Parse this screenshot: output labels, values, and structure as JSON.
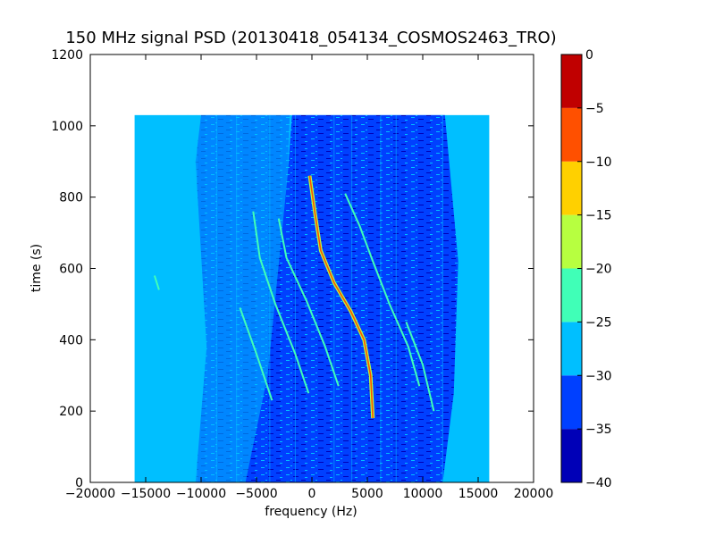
{
  "chart_data": {
    "type": "heatmap",
    "title": "150 MHz signal PSD (20130418_054134_COSMOS2463_TRO)",
    "xlabel": "frequency (Hz)",
    "ylabel": "time (s)",
    "xlim": [
      -20000,
      20000
    ],
    "ylim": [
      0,
      1200
    ],
    "xticks": [
      -20000,
      -15000,
      -10000,
      -5000,
      0,
      5000,
      10000,
      15000,
      20000
    ],
    "xtick_labels": [
      "−20000",
      "−15000",
      "−10000",
      "−5000",
      "0",
      "5000",
      "10000",
      "15000",
      "20000"
    ],
    "yticks": [
      0,
      200,
      400,
      600,
      800,
      1000,
      1200
    ],
    "ytick_labels": [
      "0",
      "200",
      "400",
      "600",
      "800",
      "1000",
      "1200"
    ],
    "data_extent": {
      "x": [
        -16000,
        16000
      ],
      "y": [
        0,
        1030
      ]
    },
    "colorbar": {
      "levels": [
        -40,
        -35,
        -30,
        -25,
        -20,
        -15,
        -10,
        -5,
        0
      ],
      "tick_labels": [
        "−40",
        "−35",
        "−30",
        "−25",
        "−20",
        "−15",
        "−10",
        "−5",
        "0"
      ],
      "colors": [
        "#0000b7",
        "#0040ff",
        "#00bfff",
        "#40ffb7",
        "#b7ff40",
        "#ffd000",
        "#ff5000",
        "#c00000"
      ]
    },
    "background_level_color": "#00bfff",
    "noise_level_color": "#0040ff",
    "dominant_trace": {
      "name": "main Doppler trace",
      "peak_color": "#ff5000",
      "points": [
        [
          5500,
          180
        ],
        [
          5300,
          300
        ],
        [
          4700,
          400
        ],
        [
          3500,
          480
        ],
        [
          2000,
          560
        ],
        [
          800,
          650
        ],
        [
          300,
          750
        ],
        [
          -200,
          860
        ]
      ]
    },
    "secondary_traces": [
      {
        "points": [
          [
            9700,
            270
          ],
          [
            8700,
            380
          ],
          [
            7000,
            500
          ],
          [
            5500,
            620
          ],
          [
            4300,
            720
          ],
          [
            3000,
            810
          ]
        ]
      },
      {
        "points": [
          [
            2400,
            270
          ],
          [
            1200,
            380
          ],
          [
            -500,
            510
          ],
          [
            -2300,
            630
          ],
          [
            -3000,
            740
          ]
        ]
      },
      {
        "points": [
          [
            -300,
            250
          ],
          [
            -1500,
            360
          ],
          [
            -3300,
            500
          ],
          [
            -4700,
            630
          ],
          [
            -5300,
            760
          ]
        ]
      },
      {
        "points": [
          [
            11000,
            200
          ],
          [
            10000,
            330
          ],
          [
            8500,
            450
          ]
        ]
      },
      {
        "points": [
          [
            -3600,
            230
          ],
          [
            -5000,
            360
          ],
          [
            -6500,
            490
          ]
        ]
      },
      {
        "points": [
          [
            -14200,
            580
          ],
          [
            -13800,
            540
          ]
        ]
      }
    ]
  }
}
